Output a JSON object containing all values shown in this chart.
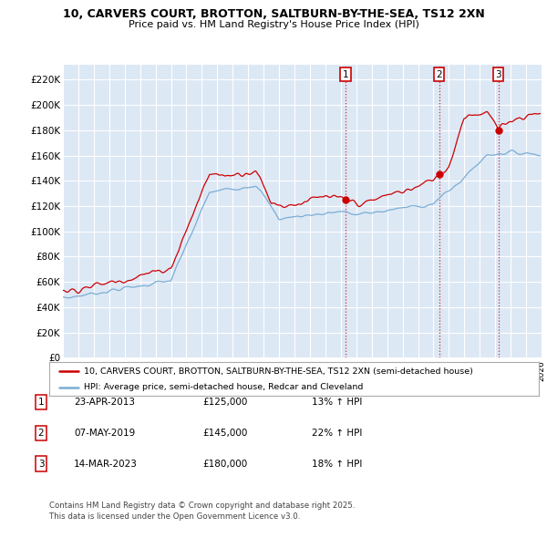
{
  "title_line1": "10, CARVERS COURT, BROTTON, SALTBURN-BY-THE-SEA, TS12 2XN",
  "title_line2": "Price paid vs. HM Land Registry's House Price Index (HPI)",
  "ylim": [
    0,
    230000
  ],
  "yticks": [
    0,
    20000,
    40000,
    60000,
    80000,
    100000,
    120000,
    140000,
    160000,
    180000,
    200000,
    220000
  ],
  "ytick_labels": [
    "£0",
    "£20K",
    "£40K",
    "£60K",
    "£80K",
    "£100K",
    "£120K",
    "£140K",
    "£160K",
    "£180K",
    "£200K",
    "£220K"
  ],
  "background_color": "#ffffff",
  "plot_background": "#dde8f5",
  "grid_color": "#ffffff",
  "line1_color": "#cc0000",
  "line2_color": "#7aadd4",
  "vline_color": "#cc0000",
  "legend_label1": "10, CARVERS COURT, BROTTON, SALTBURN-BY-THE-SEA, TS12 2XN (semi-detached house)",
  "legend_label2": "HPI: Average price, semi-detached house, Redcar and Cleveland",
  "transactions": [
    {
      "num": 1,
      "date": "23-APR-2013",
      "price": "£125,000",
      "hpi": "13% ↑ HPI",
      "year": 2013.3
    },
    {
      "num": 2,
      "date": "07-MAY-2019",
      "price": "£145,000",
      "hpi": "22% ↑ HPI",
      "year": 2019.36
    },
    {
      "num": 3,
      "date": "14-MAR-2023",
      "price": "£180,000",
      "hpi": "18% ↑ HPI",
      "year": 2023.2
    }
  ],
  "transaction_prices": [
    125000,
    145000,
    180000
  ],
  "footer": "Contains HM Land Registry data © Crown copyright and database right 2025.\nThis data is licensed under the Open Government Licence v3.0.",
  "xmin": 1995,
  "xmax": 2026
}
